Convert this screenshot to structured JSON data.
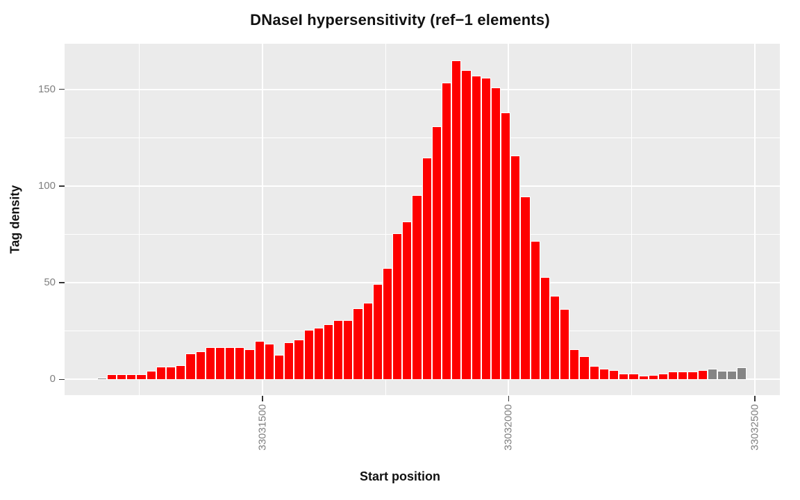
{
  "title": "DNaseI hypersensitivity (ref−1 elements)",
  "chart_data": {
    "type": "bar",
    "title": "DNaseI hypersensitivity (ref−1 elements)",
    "xlabel": "Start position",
    "ylabel": "Tag density",
    "xlim": [
      33031098,
      33032551
    ],
    "ylim": [
      -8.1,
      173.7
    ],
    "x_ticks": [
      33031500,
      33032000,
      33032500
    ],
    "x_tick_labels": [
      "33031500",
      "33032000",
      "33032500"
    ],
    "x_minor_ticks": [
      33031250,
      33031750,
      33032250
    ],
    "y_ticks": [
      0,
      50,
      100,
      150
    ],
    "y_tick_labels": [
      "0",
      "50",
      "100",
      "150"
    ],
    "y_minor_ticks": [
      25,
      75,
      125
    ],
    "grid": true,
    "legend_position": "none",
    "bin_start": 33031164,
    "bin_width": 20,
    "values": [
      0.7,
      2.7,
      2.7,
      2.7,
      2.5,
      4.6,
      6.5,
      6.5,
      7.4,
      13.6,
      14.6,
      16.6,
      16.6,
      16.6,
      16.6,
      15.5,
      19.9,
      18.6,
      12.7,
      19.0,
      20.6,
      25.6,
      26.7,
      28.5,
      30.7,
      30.7,
      36.6,
      39.7,
      49.5,
      57.6,
      75.5,
      81.5,
      95.4,
      114.7,
      130.9,
      153.3,
      165.0,
      159.9,
      156.9,
      156.0,
      150.9,
      137.9,
      115.7,
      94.7,
      71.5,
      52.8,
      43.2,
      36.4,
      15.5,
      11.9,
      6.9,
      5.7,
      5.0,
      3.1,
      3.1,
      1.9,
      2.2,
      2.9,
      4.1,
      4.1,
      4.0,
      4.9,
      5.7,
      4.5,
      4.5,
      6.1
    ],
    "fills": [
      "gray",
      "red",
      "red",
      "red",
      "red",
      "red",
      "red",
      "red",
      "red",
      "red",
      "red",
      "red",
      "red",
      "red",
      "red",
      "red",
      "red",
      "red",
      "red",
      "red",
      "red",
      "red",
      "red",
      "red",
      "red",
      "red",
      "red",
      "red",
      "red",
      "red",
      "red",
      "red",
      "red",
      "red",
      "red",
      "red",
      "red",
      "red",
      "red",
      "red",
      "red",
      "red",
      "red",
      "red",
      "red",
      "red",
      "red",
      "red",
      "red",
      "red",
      "red",
      "red",
      "red",
      "red",
      "red",
      "red",
      "red",
      "red",
      "red",
      "red",
      "red",
      "red",
      "gray",
      "gray",
      "gray",
      "gray"
    ]
  },
  "style": {
    "bar_red": "#fe0000",
    "bar_gray": "#858585",
    "bar_border": "#ffffff",
    "panel_bg": "#ebebeb",
    "gridline": "#ffffff",
    "tick_label_color": "#7f7f7f",
    "tick_mark_color": "#333333",
    "text_color": "#111111",
    "page_bg": "#ffffff"
  }
}
